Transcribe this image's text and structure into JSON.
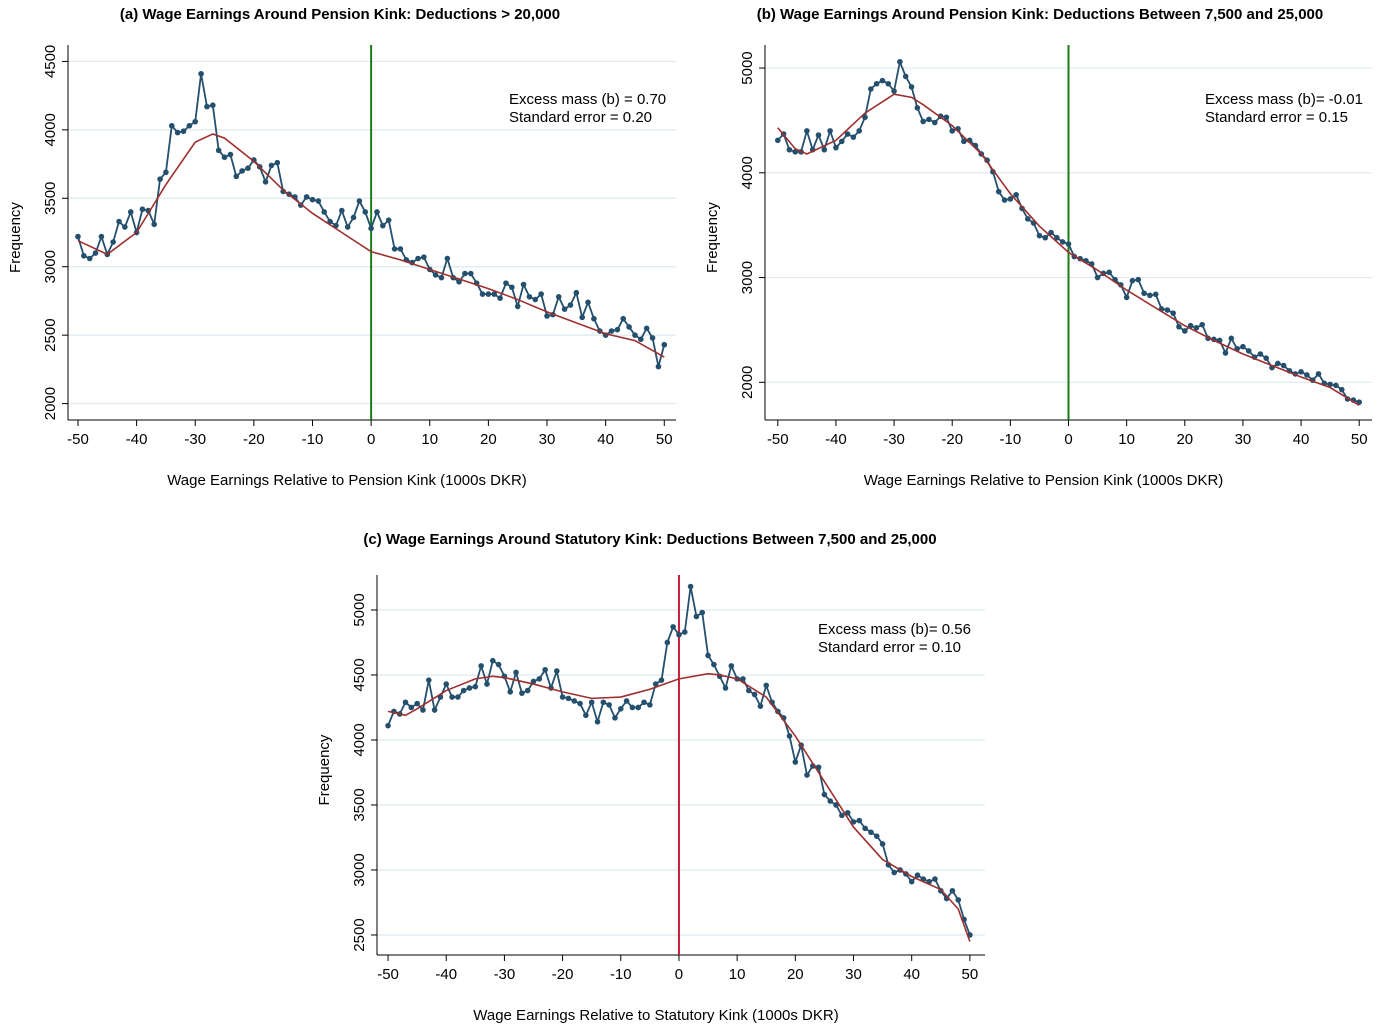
{
  "chart_data": [
    {
      "type": "line",
      "title": "(a) Wage Earnings Around Pension Kink: Deductions > 20,000",
      "xlabel": "Wage Earnings Relative to Pension Kink (1000s DKR)",
      "ylabel": "Frequency",
      "xlim": [
        -51.7,
        52
      ],
      "ylim": [
        1880,
        4620
      ],
      "xticks": [
        -50,
        -40,
        -30,
        -20,
        -10,
        0,
        10,
        20,
        30,
        40,
        50
      ],
      "yticks": [
        2000,
        2500,
        3000,
        3500,
        4000,
        4500
      ],
      "grid": true,
      "vline": {
        "value": 0,
        "color": "#1a7d1a"
      },
      "annotations": [
        "Excess mass (b) = 0.70",
        "Standard error = 0.20"
      ],
      "series": [
        {
          "color": "#24506e",
          "markers": true,
          "x": [
            -50,
            -49,
            -48,
            -47,
            -46,
            -45,
            -44,
            -43,
            -42,
            -41,
            -40,
            -39,
            -38,
            -37,
            -36,
            -35,
            -34,
            -33,
            -32,
            -31,
            -30,
            -29,
            -28,
            -27,
            -26,
            -25,
            -24,
            -23,
            -22,
            -21,
            -20,
            -19,
            -18,
            -17,
            -16,
            -15,
            -14,
            -13,
            -12,
            -11,
            -10,
            -9,
            -8,
            -7,
            -6,
            -5,
            -4,
            -3,
            -2,
            -1,
            0,
            1,
            2,
            3,
            4,
            5,
            6,
            7,
            8,
            9,
            10,
            11,
            12,
            13,
            14,
            15,
            16,
            17,
            18,
            19,
            20,
            21,
            22,
            23,
            24,
            25,
            26,
            27,
            28,
            29,
            30,
            31,
            32,
            33,
            34,
            35,
            36,
            37,
            38,
            39,
            40,
            41,
            42,
            43,
            44,
            45,
            46,
            47,
            48,
            49,
            50
          ],
          "values": [
            3220,
            3080,
            3060,
            3100,
            3220,
            3090,
            3180,
            3330,
            3290,
            3400,
            3250,
            3420,
            3410,
            3310,
            3640,
            3690,
            4030,
            3980,
            3990,
            4030,
            4060,
            4410,
            4170,
            4180,
            3850,
            3800,
            3820,
            3660,
            3700,
            3720,
            3780,
            3730,
            3620,
            3740,
            3760,
            3550,
            3530,
            3510,
            3450,
            3510,
            3490,
            3480,
            3400,
            3330,
            3300,
            3410,
            3290,
            3360,
            3480,
            3400,
            3280,
            3400,
            3300,
            3340,
            3130,
            3130,
            3050,
            3030,
            3060,
            3070,
            2980,
            2940,
            2920,
            3060,
            2920,
            2890,
            2950,
            2950,
            2880,
            2800,
            2800,
            2800,
            2770,
            2880,
            2850,
            2710,
            2870,
            2780,
            2760,
            2800,
            2640,
            2650,
            2780,
            2690,
            2720,
            2810,
            2630,
            2740,
            2620,
            2530,
            2500,
            2530,
            2540,
            2620,
            2560,
            2500,
            2470,
            2550,
            2480,
            2270,
            2430
          ]
        },
        {
          "color": "#9e2f2f",
          "markers": false,
          "x": [
            -50,
            -45,
            -40,
            -35,
            -30,
            -27,
            -25,
            -20,
            -15,
            -10,
            -5,
            0,
            5,
            10,
            15,
            20,
            25,
            30,
            35,
            40,
            45,
            50
          ],
          "values": [
            3190,
            3090,
            3250,
            3600,
            3910,
            3970,
            3940,
            3770,
            3560,
            3390,
            3250,
            3110,
            3050,
            2980,
            2910,
            2840,
            2760,
            2670,
            2590,
            2510,
            2460,
            2340
          ]
        }
      ]
    },
    {
      "type": "line",
      "title": "(b) Wage Earnings Around Pension Kink: Deductions Between 7,500 and 25,000",
      "xlabel": "Wage Earnings Relative to Pension Kink (1000s DKR)",
      "ylabel": "Frequency",
      "xlim": [
        -52.2,
        52.2
      ],
      "ylim": [
        1640,
        5220
      ],
      "xticks": [
        -50,
        -40,
        -30,
        -20,
        -10,
        0,
        10,
        20,
        30,
        40,
        50
      ],
      "yticks": [
        2000,
        3000,
        4000,
        5000
      ],
      "grid": true,
      "vline": {
        "value": 0,
        "color": "#1a7d1a"
      },
      "annotations": [
        "Excess mass (b)= -0.01",
        "Standard error = 0.15"
      ],
      "series": [
        {
          "color": "#24506e",
          "markers": true,
          "x": [
            -50,
            -49,
            -48,
            -47,
            -46,
            -45,
            -44,
            -43,
            -42,
            -41,
            -40,
            -39,
            -38,
            -37,
            -36,
            -35,
            -34,
            -33,
            -32,
            -31,
            -30,
            -29,
            -28,
            -27,
            -26,
            -25,
            -24,
            -23,
            -22,
            -21,
            -20,
            -19,
            -18,
            -17,
            -16,
            -15,
            -14,
            -13,
            -12,
            -11,
            -10,
            -9,
            -8,
            -7,
            -6,
            -5,
            -4,
            -3,
            -2,
            -1,
            0,
            1,
            2,
            3,
            4,
            5,
            6,
            7,
            8,
            9,
            10,
            11,
            12,
            13,
            14,
            15,
            16,
            17,
            18,
            19,
            20,
            21,
            22,
            23,
            24,
            25,
            26,
            27,
            28,
            29,
            30,
            31,
            32,
            33,
            34,
            35,
            36,
            37,
            38,
            39,
            40,
            41,
            42,
            43,
            44,
            45,
            46,
            47,
            48,
            49,
            50
          ],
          "values": [
            4310,
            4370,
            4220,
            4200,
            4200,
            4400,
            4220,
            4360,
            4220,
            4400,
            4240,
            4300,
            4370,
            4340,
            4400,
            4530,
            4800,
            4850,
            4880,
            4850,
            4780,
            5060,
            4920,
            4820,
            4620,
            4490,
            4510,
            4480,
            4540,
            4530,
            4400,
            4420,
            4300,
            4310,
            4260,
            4180,
            4120,
            4010,
            3820,
            3740,
            3750,
            3790,
            3660,
            3560,
            3520,
            3400,
            3380,
            3430,
            3380,
            3340,
            3320,
            3200,
            3180,
            3160,
            3130,
            3000,
            3040,
            3050,
            2980,
            2930,
            2810,
            2970,
            2980,
            2850,
            2830,
            2840,
            2700,
            2690,
            2660,
            2530,
            2490,
            2540,
            2520,
            2550,
            2420,
            2410,
            2400,
            2280,
            2420,
            2320,
            2340,
            2300,
            2240,
            2270,
            2230,
            2140,
            2180,
            2160,
            2110,
            2080,
            2100,
            2070,
            2020,
            2080,
            1990,
            1980,
            1970,
            1930,
            1840,
            1830,
            1810
          ]
        },
        {
          "color": "#9e2f2f",
          "markers": false,
          "x": [
            -50,
            -47,
            -45,
            -40,
            -35,
            -30,
            -27,
            -25,
            -20,
            -15,
            -10,
            -5,
            0,
            5,
            10,
            15,
            20,
            25,
            30,
            35,
            40,
            45,
            50
          ],
          "values": [
            4430,
            4230,
            4180,
            4310,
            4570,
            4750,
            4720,
            4650,
            4450,
            4180,
            3800,
            3490,
            3240,
            3070,
            2880,
            2710,
            2540,
            2400,
            2270,
            2160,
            2050,
            1950,
            1780
          ]
        }
      ]
    },
    {
      "type": "line",
      "title": "(c) Wage Earnings Around Statutory Kink: Deductions Between 7,500 and 25,000",
      "xlabel": "Wage Earnings Relative to Statutory Kink (1000s DKR)",
      "ylabel": "Frequency",
      "xlim": [
        -51.9,
        52.6
      ],
      "ylim": [
        2346,
        5269
      ],
      "xticks": [
        -50,
        -40,
        -30,
        -20,
        -10,
        0,
        10,
        20,
        30,
        40,
        50
      ],
      "yticks": [
        2500,
        3000,
        3500,
        4000,
        4500,
        5000
      ],
      "grid": true,
      "vline": {
        "value": 0,
        "color": "#c41e3a"
      },
      "annotations": [
        "Excess mass (b)= 0.56",
        "Standard error = 0.10"
      ],
      "series": [
        {
          "color": "#24506e",
          "markers": true,
          "x": [
            -50,
            -49,
            -48,
            -47,
            -46,
            -45,
            -44,
            -43,
            -42,
            -41,
            -40,
            -39,
            -38,
            -37,
            -36,
            -35,
            -34,
            -33,
            -32,
            -31,
            -30,
            -29,
            -28,
            -27,
            -26,
            -25,
            -24,
            -23,
            -22,
            -21,
            -20,
            -19,
            -18,
            -17,
            -16,
            -15,
            -14,
            -13,
            -12,
            -11,
            -10,
            -9,
            -8,
            -7,
            -6,
            -5,
            -4,
            -3,
            -2,
            -1,
            0,
            1,
            2,
            3,
            4,
            5,
            6,
            7,
            8,
            9,
            10,
            11,
            12,
            13,
            14,
            15,
            16,
            17,
            18,
            19,
            20,
            21,
            22,
            23,
            24,
            25,
            26,
            27,
            28,
            29,
            30,
            31,
            32,
            33,
            34,
            35,
            36,
            37,
            38,
            39,
            40,
            41,
            42,
            43,
            44,
            45,
            46,
            47,
            48,
            49,
            50
          ],
          "values": [
            4110,
            4220,
            4200,
            4290,
            4250,
            4280,
            4230,
            4460,
            4230,
            4330,
            4430,
            4330,
            4330,
            4380,
            4400,
            4410,
            4570,
            4430,
            4610,
            4580,
            4490,
            4370,
            4520,
            4360,
            4380,
            4450,
            4470,
            4540,
            4400,
            4530,
            4330,
            4320,
            4300,
            4280,
            4190,
            4290,
            4140,
            4290,
            4270,
            4170,
            4240,
            4300,
            4250,
            4250,
            4290,
            4270,
            4430,
            4460,
            4750,
            4870,
            4810,
            4830,
            5180,
            4950,
            4980,
            4650,
            4580,
            4490,
            4400,
            4570,
            4470,
            4470,
            4380,
            4350,
            4260,
            4420,
            4290,
            4220,
            4170,
            4030,
            3830,
            3960,
            3730,
            3800,
            3790,
            3580,
            3530,
            3500,
            3420,
            3440,
            3370,
            3380,
            3320,
            3290,
            3260,
            3200,
            3040,
            2980,
            3000,
            2970,
            2910,
            2960,
            2930,
            2910,
            2930,
            2840,
            2780,
            2840,
            2770,
            2620,
            2500
          ]
        },
        {
          "color": "#9e2f2f",
          "markers": false,
          "x": [
            -50,
            -47,
            -45,
            -40,
            -35,
            -32,
            -30,
            -25,
            -20,
            -15,
            -10,
            -5,
            0,
            5,
            7,
            10,
            15,
            20,
            25,
            30,
            35,
            40,
            45,
            48,
            50
          ],
          "values": [
            4220,
            4190,
            4240,
            4380,
            4470,
            4490,
            4480,
            4430,
            4370,
            4320,
            4330,
            4390,
            4470,
            4510,
            4500,
            4470,
            4330,
            4030,
            3680,
            3330,
            3080,
            2950,
            2850,
            2700,
            2450
          ]
        }
      ]
    }
  ]
}
